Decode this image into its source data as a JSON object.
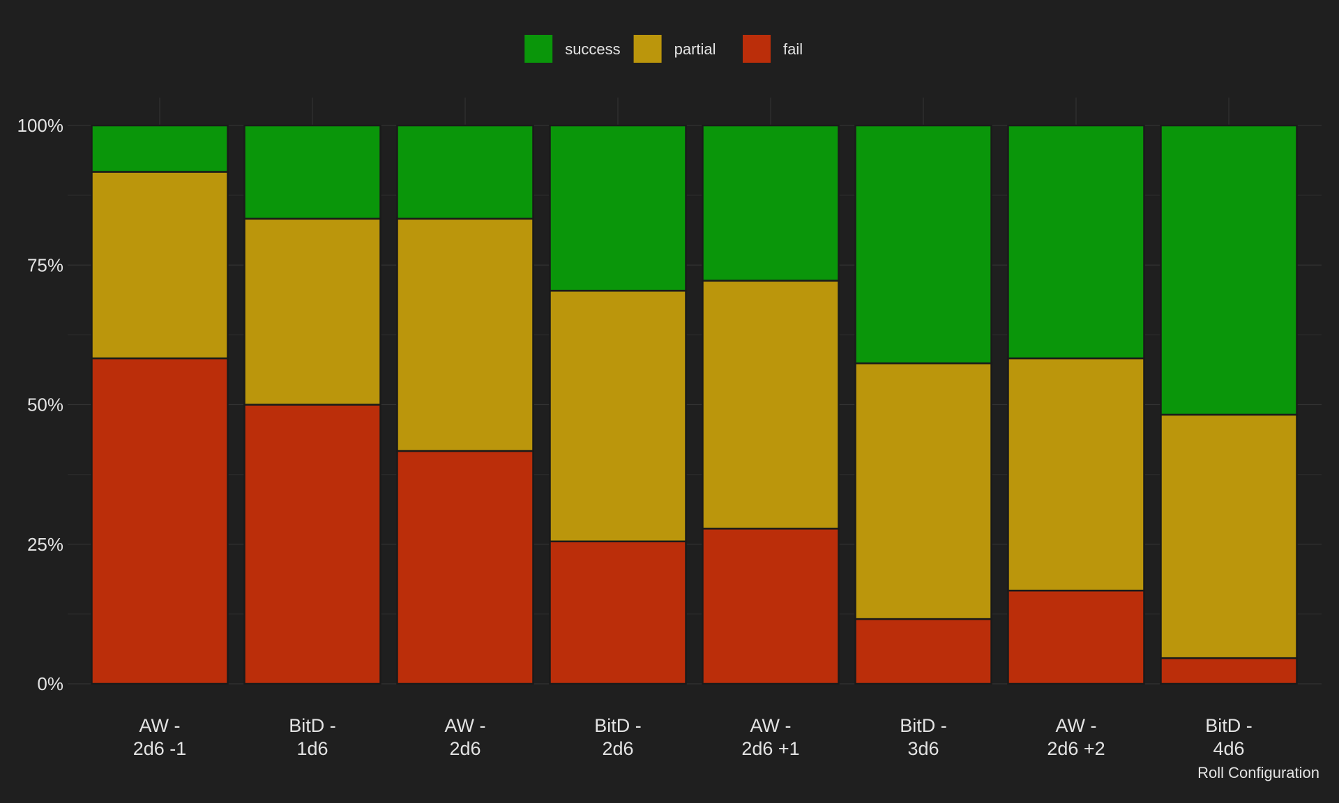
{
  "chart_data": {
    "type": "bar",
    "stacked": true,
    "percent": true,
    "title": "",
    "xlabel": "Roll Configuration",
    "ylabel": "",
    "ylim": [
      0,
      100
    ],
    "yticks": [
      "0%",
      "25%",
      "50%",
      "75%",
      "100%"
    ],
    "categories": [
      [
        "AW -",
        "2d6 -1"
      ],
      [
        "BitD -",
        "1d6"
      ],
      [
        "AW -",
        "2d6"
      ],
      [
        "BitD -",
        "2d6"
      ],
      [
        "AW -",
        "2d6 +1"
      ],
      [
        "BitD -",
        "3d6"
      ],
      [
        "AW -",
        "2d6 +2"
      ],
      [
        "BitD -",
        "4d6"
      ]
    ],
    "series": [
      {
        "name": "fail",
        "color": "#bb2e0a",
        "values": [
          58.3,
          50.0,
          41.7,
          25.5,
          27.8,
          11.6,
          16.7,
          4.6
        ]
      },
      {
        "name": "partial",
        "color": "#bb960c",
        "values": [
          33.4,
          33.3,
          41.6,
          44.9,
          44.4,
          45.8,
          41.6,
          43.6
        ]
      },
      {
        "name": "success",
        "color": "#0a960a",
        "values": [
          8.3,
          16.7,
          16.7,
          29.6,
          27.8,
          42.6,
          41.7,
          51.8
        ]
      }
    ],
    "legend": {
      "position": "top",
      "order": [
        "success",
        "partial",
        "fail"
      ]
    },
    "grid": true
  }
}
